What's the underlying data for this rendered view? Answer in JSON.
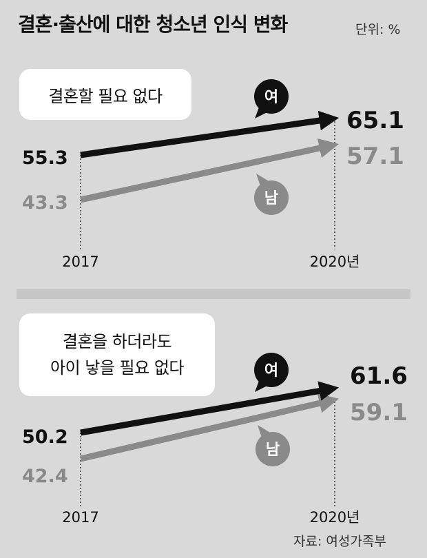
{
  "title": "결혼·출산에 대한 청소년 인식 변화",
  "unit_label": "단위: %",
  "source": "자료: 여성가족부",
  "colors": {
    "female": "#111111",
    "male": "#8a8a8a",
    "background": "#d9d9d9",
    "box": "#ffffff"
  },
  "chart_data": [
    {
      "type": "line",
      "title": "결혼할 필요 없다",
      "title_lines": [
        "결혼할 필요 없다"
      ],
      "x": [
        "2017",
        "2020년"
      ],
      "series": [
        {
          "name": "여",
          "values": [
            55.3,
            65.1
          ]
        },
        {
          "name": "남",
          "values": [
            43.3,
            57.1
          ]
        }
      ],
      "labels": {
        "f_start": "55.3",
        "f_end": "65.1",
        "m_start": "43.3",
        "m_end": "57.1"
      }
    },
    {
      "type": "line",
      "title": "결혼을 하더라도 아이 낳을 필요 없다",
      "title_lines": [
        "결혼을 하더라도",
        "아이 낳을 필요 없다"
      ],
      "x": [
        "2017",
        "2020년"
      ],
      "series": [
        {
          "name": "여",
          "values": [
            50.2,
            61.6
          ]
        },
        {
          "name": "남",
          "values": [
            42.4,
            59.1
          ]
        }
      ],
      "labels": {
        "f_start": "50.2",
        "f_end": "61.6",
        "m_start": "42.4",
        "m_end": "59.1"
      }
    }
  ]
}
